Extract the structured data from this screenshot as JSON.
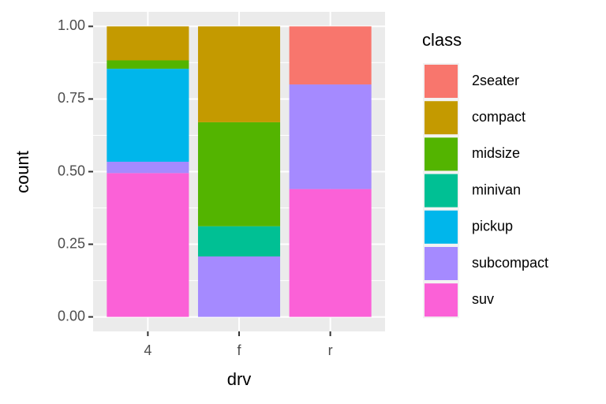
{
  "chart_data": {
    "type": "stacked-bar",
    "x_label": "drv",
    "y_label": "count",
    "legend_title": "class",
    "categories": [
      "4",
      "f",
      "r"
    ],
    "series": [
      {
        "name": "2seater",
        "color": "#F8766D",
        "values": [
          0,
          0,
          0.2
        ]
      },
      {
        "name": "compact",
        "color": "#C49A00",
        "values": [
          0.117,
          0.33,
          0
        ]
      },
      {
        "name": "midsize",
        "color": "#53B400",
        "values": [
          0.029,
          0.358,
          0
        ]
      },
      {
        "name": "minivan",
        "color": "#00C094",
        "values": [
          0,
          0.104,
          0
        ]
      },
      {
        "name": "pickup",
        "color": "#00B6EB",
        "values": [
          0.32,
          0,
          0
        ]
      },
      {
        "name": "subcompact",
        "color": "#A58AFF",
        "values": [
          0.039,
          0.208,
          0.36
        ]
      },
      {
        "name": "suv",
        "color": "#FB61D7",
        "values": [
          0.495,
          0,
          0.44
        ]
      }
    ],
    "ylim": [
      -0.05,
      1.05
    ],
    "yticks": [
      {
        "value": 0,
        "label": "0.00"
      },
      {
        "value": 0.25,
        "label": "0.25"
      },
      {
        "value": 0.5,
        "label": "0.50"
      },
      {
        "value": 0.75,
        "label": "0.75"
      },
      {
        "value": 1,
        "label": "1.00"
      }
    ],
    "grid": true
  }
}
